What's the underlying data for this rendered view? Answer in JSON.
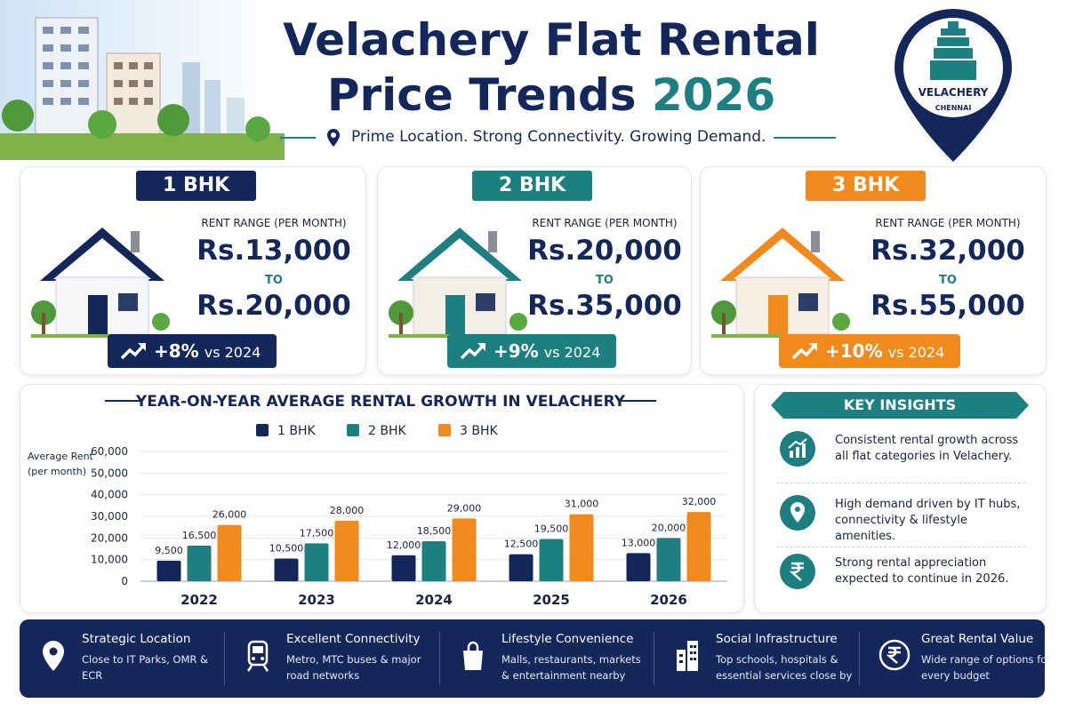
{
  "header": {
    "title_line1": "Velachery Flat Rental",
    "title_line2": "Price Trends",
    "title_year": "2026",
    "subtitle": "Prime Location. Strong Connectivity. Growing Demand.",
    "badge_name": "VELACHERY",
    "badge_city": "CHENNAI"
  },
  "cards": [
    {
      "label": "1 BHK",
      "range_label": "RENT RANGE (PER MONTH)",
      "min": "Rs.13,000",
      "to": "TO",
      "max": "Rs.20,000",
      "growth": "+8%",
      "growth_note": "vs 2024"
    },
    {
      "label": "2 BHK",
      "range_label": "RENT RANGE (PER MONTH)",
      "min": "Rs.20,000",
      "to": "TO",
      "max": "Rs.35,000",
      "growth": "+9%",
      "growth_note": "vs 2024"
    },
    {
      "label": "3 BHK",
      "range_label": "RENT RANGE (PER MONTH)",
      "min": "Rs.32,000",
      "to": "TO",
      "max": "Rs.55,000",
      "growth": "+10%",
      "growth_note": "vs 2024"
    }
  ],
  "chart_data": {
    "type": "bar",
    "title": "YEAR-ON-YEAR AVERAGE RENTAL GROWTH IN VELACHERY",
    "y_label": "Average Rent (per month)",
    "categories": [
      "2022",
      "2023",
      "2024",
      "2025",
      "2026"
    ],
    "series": [
      {
        "name": "1 BHK",
        "color": "#13275a",
        "values": [
          9500,
          10500,
          12000,
          12500,
          13000
        ],
        "value_labels": [
          "9,500",
          "10,500",
          "12,000",
          "12,500",
          "13,000"
        ]
      },
      {
        "name": "2 BHK",
        "color": "#1e7f80",
        "values": [
          16500,
          17500,
          18500,
          19500,
          20000
        ],
        "value_labels": [
          "16,500",
          "17,500",
          "18,500",
          "19,500",
          "20,000"
        ]
      },
      {
        "name": "3 BHK",
        "color": "#f08a1c",
        "values": [
          26000,
          28000,
          29000,
          31000,
          32000
        ],
        "value_labels": [
          "26,000",
          "28,000",
          "29,000",
          "31,000",
          "32,000"
        ]
      }
    ],
    "ylim": [
      0,
      60000
    ],
    "yticks": [
      0,
      {
        "value": 10000,
        "label": "10,000"
      },
      {
        "value": 20000,
        "label": "20,000"
      },
      {
        "value": 30000,
        "label": "30,000"
      },
      {
        "value": 40000,
        "label": "40,000"
      },
      {
        "value": 50000,
        "label": "50,000"
      },
      {
        "value": 60000,
        "label": "60,000"
      }
    ],
    "grid": true,
    "legend": "top"
  },
  "insights": {
    "title": "KEY INSIGHTS",
    "items": [
      "Consistent rental growth across all flat categories in Velachery.",
      "High demand driven by IT hubs, connectivity & lifestyle amenities.",
      "Strong rental appreciation expected to continue in 2026."
    ]
  },
  "features": [
    {
      "title": "Strategic Location",
      "text": "Close to IT Parks, OMR & ECR"
    },
    {
      "title": "Excellent Connectivity",
      "text": "Metro, MTC buses & major road networks"
    },
    {
      "title": "Lifestyle Convenience",
      "text": "Malls, restaurants, markets & entertainment nearby"
    },
    {
      "title": "Social Infrastructure",
      "text": "Top schools, hospitals & essential services close by"
    },
    {
      "title": "Great Rental Value",
      "text": "Wide range of options for every budget"
    }
  ]
}
